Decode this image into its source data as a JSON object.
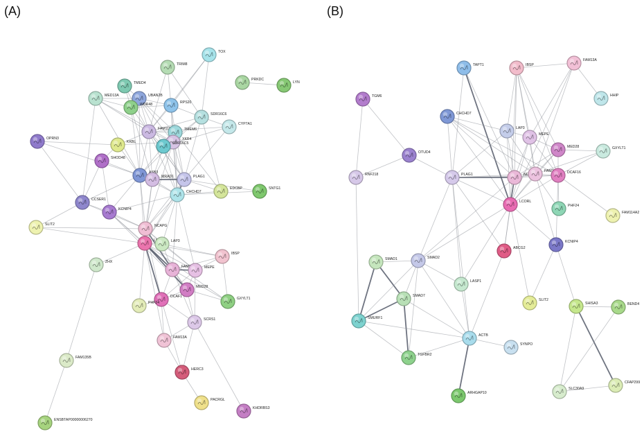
{
  "panel_a_label": "(A)",
  "panel_b_label": "(B)",
  "panel_a": {
    "nodes": [
      {
        "id": "TOX",
        "label": "TOX",
        "color": "#a6e3ea"
      },
      {
        "id": "TRIM8",
        "label": "TRIM8",
        "color": "#b5dcb4"
      },
      {
        "id": "PRKDC",
        "label": "PRKDC",
        "color": "#a9d6a2"
      },
      {
        "id": "LYN",
        "label": "LYN",
        "color": "#86c874"
      },
      {
        "id": "TMED4",
        "label": "TMED4",
        "color": "#7ec9b1"
      },
      {
        "id": "MED13A",
        "label": "MED13A",
        "color": "#b9e2d0"
      },
      {
        "id": "UBAN2B",
        "label": "UBAN2B",
        "color": "#8ea6dc"
      },
      {
        "id": "WDR48",
        "label": "WDR48",
        "color": "#8ed08a"
      },
      {
        "id": "RPS20",
        "label": "RPS20",
        "color": "#8ec3ea"
      },
      {
        "id": "SDR16C6",
        "label": "SDR16C6",
        "color": "#b5e0e0"
      },
      {
        "id": "CYP7A1",
        "label": "CYP7A1",
        "color": "#c4e8ea"
      },
      {
        "id": "FAM110",
        "label": "FAM110",
        "color": "#cbb9e2"
      },
      {
        "id": "TMEM6",
        "label": "TMEM6",
        "color": "#9dd8dc"
      },
      {
        "id": "OPRN3",
        "label": "OPRN3",
        "color": "#8f7acb"
      },
      {
        "id": "KKBL",
        "label": "KKBL",
        "color": "#dfe98e"
      },
      {
        "id": "XKR4",
        "label": "XKR4",
        "color": "#d6c3e4"
      },
      {
        "id": "SDR16C5",
        "label": "SDR16C5",
        "color": "#6dc9cf"
      },
      {
        "id": "SHOD48",
        "label": "SHOD48",
        "color": "#b06fc8"
      },
      {
        "id": "ASB3",
        "label": "ASB3",
        "color": "#7f96d6"
      },
      {
        "id": "MRAD1",
        "label": "MRAD1",
        "color": "#d4bde3"
      },
      {
        "id": "PLAG1",
        "label": "PLAG1",
        "color": "#c5c5ea"
      },
      {
        "id": "CHCHD7",
        "label": "CHCHD7",
        "color": "#aee4ea"
      },
      {
        "id": "EDCBP",
        "label": "EDCBP",
        "color": "#d4e59a"
      },
      {
        "id": "SNTG1",
        "label": "SNTG1",
        "color": "#7fc86e"
      },
      {
        "id": "CCSER1",
        "label": "CCSER1",
        "color": "#8e86cc"
      },
      {
        "id": "KCNIP4",
        "label": "KCNIP4",
        "color": "#a77ad0"
      },
      {
        "id": "SLIT2",
        "label": "SLIT2",
        "color": "#eef2b0"
      },
      {
        "id": "NCAPG",
        "label": "NCAPG",
        "color": "#f0bed4"
      },
      {
        "id": "LCORL",
        "label": "LCORL",
        "color": "#ea74ad"
      },
      {
        "id": "LAP3",
        "label": "LAP3",
        "color": "#cbe8c2"
      },
      {
        "id": "ZHX",
        "label": "ZHX",
        "color": "#cfe8cb"
      },
      {
        "id": "IBSP",
        "label": "IBSP",
        "color": "#f1c3cf"
      },
      {
        "id": "FAM1",
        "label": "FAM1",
        "color": "#e8b3d8"
      },
      {
        "id": "MEPE",
        "label": "MEPE",
        "color": "#e6c0e4"
      },
      {
        "id": "MED28",
        "label": "MED28",
        "color": "#d17dc4"
      },
      {
        "id": "DCAF1",
        "label": "DCAF1",
        "color": "#e070b8"
      },
      {
        "id": "PHF24",
        "label": "PHF24",
        "color": "#e3ecb8"
      },
      {
        "id": "GXYLT1",
        "label": "GXYLT1",
        "color": "#8fd083"
      },
      {
        "id": "SCRS1",
        "label": "SCRS1",
        "color": "#dcc8e8"
      },
      {
        "id": "FAM13A",
        "label": "FAM13A",
        "color": "#f0c3d6"
      },
      {
        "id": "HERC3",
        "label": "HERC3",
        "color": "#d45c7a"
      },
      {
        "id": "PACRGL",
        "label": "PACRGL",
        "color": "#efe08a"
      },
      {
        "id": "KHDRBS3",
        "label": "KHDRBS3",
        "color": "#c47ec4"
      },
      {
        "id": "FAM135B",
        "label": "FAM135B",
        "color": "#dbeac8"
      },
      {
        "id": "ENSBTAP",
        "label": "ENSBTAP00000006270",
        "color": "#a6d37e"
      }
    ]
  },
  "panel_b": {
    "nodes": [
      {
        "id": "TAPT1",
        "label": "TAPT1",
        "color": "#8ebde9"
      },
      {
        "id": "IBSP",
        "label": "IBSP",
        "color": "#f2bccb"
      },
      {
        "id": "FAM13A",
        "label": "FAM13A",
        "color": "#f2c0d6"
      },
      {
        "id": "HHIP",
        "label": "HHIP",
        "color": "#bfe6ea"
      },
      {
        "id": "TGM6",
        "label": "TGM6",
        "color": "#b27ccc"
      },
      {
        "id": "CHCHD7",
        "label": "CHCHD7",
        "color": "#7f98d6"
      },
      {
        "id": "LAP3",
        "label": "LAP3",
        "color": "#c4cdea"
      },
      {
        "id": "MEPE",
        "label": "MEPE",
        "color": "#e0c2e6"
      },
      {
        "id": "MED28",
        "label": "MED28",
        "color": "#cf86c8"
      },
      {
        "id": "GXYLT1",
        "label": "GXYLT1",
        "color": "#c9eadf"
      },
      {
        "id": "OTUD4",
        "label": "OTUD4",
        "color": "#9b82cf"
      },
      {
        "id": "RNF218",
        "label": "RNF218",
        "color": "#d6c8e8"
      },
      {
        "id": "PLAG1",
        "label": "PLAG1",
        "color": "#d5c9ea"
      },
      {
        "id": "NCAPG",
        "label": "NCAPG",
        "color": "#eab8d8"
      },
      {
        "id": "FAM184B",
        "label": "FAM184B",
        "color": "#ecc2df"
      },
      {
        "id": "DCAF16",
        "label": "DCAF16",
        "color": "#e07fc0"
      },
      {
        "id": "LCORL",
        "label": "LCORL",
        "color": "#e86cb2"
      },
      {
        "id": "PHF24",
        "label": "PHF24",
        "color": "#8ed6b5"
      },
      {
        "id": "FAM114A2",
        "label": "FAM114A2",
        "color": "#eef2b0"
      },
      {
        "id": "ABCG2",
        "label": "ABCG2",
        "color": "#e05c86"
      },
      {
        "id": "KCNIP4",
        "label": "KCNIP4",
        "color": "#7b78c8"
      },
      {
        "id": "SMAD1",
        "label": "SMAD1",
        "color": "#c5e6bd"
      },
      {
        "id": "SMAD2",
        "label": "SMAD2",
        "color": "#c4c8e8"
      },
      {
        "id": "LASP1",
        "label": "LASP1",
        "color": "#c5e8cf"
      },
      {
        "id": "SLIT2",
        "label": "SLIT2",
        "color": "#e4ec98"
      },
      {
        "id": "SMAD7",
        "label": "SMAD7",
        "color": "#b8e0b6"
      },
      {
        "id": "SHISA3",
        "label": "SHISA3",
        "color": "#c5e78c"
      },
      {
        "id": "BEND4",
        "label": "BEND4",
        "color": "#a8d98a"
      },
      {
        "id": "SMURF1",
        "label": "SMURF1",
        "color": "#7dd2cf"
      },
      {
        "id": "ACTB",
        "label": "ACTB",
        "color": "#a8dcec"
      },
      {
        "id": "SYNPO",
        "label": "SYNPO",
        "color": "#c8e0f0"
      },
      {
        "id": "TGFBR2",
        "label": "TGFBR2",
        "color": "#8ed28d"
      },
      {
        "id": "ARHGAP10",
        "label": "ARHGAP10",
        "color": "#7cc86e"
      },
      {
        "id": "SLC30A9",
        "label": "SLC30A9",
        "color": "#d7eccd"
      },
      {
        "id": "CFAP299",
        "label": "CFAP299",
        "color": "#dbecb5"
      }
    ]
  }
}
